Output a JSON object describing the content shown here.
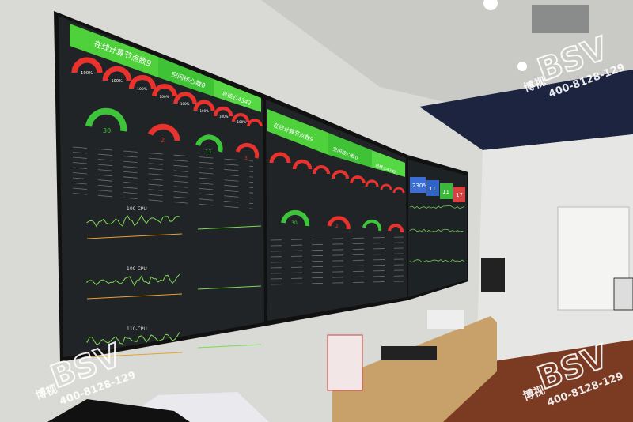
{
  "video_wall": {
    "left_panel": {
      "banner_main": "在线计算节点数9",
      "banner_idle": "空闲核心数0",
      "banner_total": "总核心4342",
      "gauge_values": [
        "100%",
        "100%",
        "100%",
        "100%",
        "100%",
        "100%",
        "100%",
        "100%"
      ],
      "small_gauges": [
        "30",
        "2",
        "11",
        "3"
      ],
      "chart_title_1": "109-CPU",
      "chart_title_2": "109-CPU",
      "chart_title_3": "110-CPU"
    },
    "middle_panel": {
      "banner_main": "在线计算节点数9",
      "banner_idle": "空闲核心数0",
      "banner_total": "总核心4342",
      "small_gauges": [
        "30",
        "2",
        "11",
        "3"
      ]
    },
    "right_panel": {
      "tiles": [
        "230%",
        "11",
        "11",
        "17"
      ],
      "colors": [
        "#3b6fd6",
        "#2f63c8",
        "#3bb83b",
        "#d94040"
      ]
    },
    "colors": {
      "banner_green": "#4fd13c",
      "gauge_red": "#e8322e",
      "gauge_green": "#3ec43a",
      "screen_bg": "#1e2224",
      "cpu_line": "#7ed957"
    }
  },
  "watermark": {
    "brand": "BSV",
    "phone": "400-8128-129",
    "chinese": "博视"
  }
}
